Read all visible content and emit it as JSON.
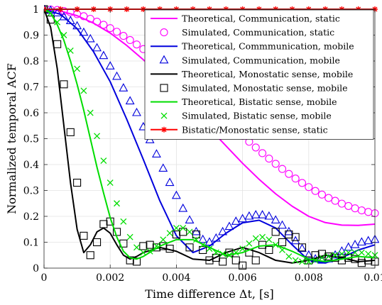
{
  "chart_data": {
    "type": "line",
    "xlabel": "Time difference Δt, [s]",
    "ylabel": "Normalized temporal ACF",
    "xlim": [
      0,
      0.01
    ],
    "ylim": [
      0,
      1
    ],
    "xticks": [
      0,
      0.002,
      0.004,
      0.006,
      0.008,
      0.01
    ],
    "xtick_labels": [
      "0",
      "0.002",
      "0.004",
      "0.006",
      "0.008",
      "0.01"
    ],
    "yticks": [
      0,
      0.1,
      0.2,
      0.3,
      0.4,
      0.5,
      0.6,
      0.7,
      0.8,
      0.9,
      1
    ],
    "ytick_labels": [
      "0",
      "0.1",
      "0.2",
      "0.3",
      "0.4",
      "0.5",
      "0.6",
      "0.7",
      "0.8",
      "0.9",
      "1"
    ],
    "grid": true,
    "legend_position": "top-right",
    "series": [
      {
        "name": "Theoretical, Communication, static",
        "kind": "line",
        "color": "#ff00ff",
        "x": [
          0,
          0.0005,
          0.001,
          0.0015,
          0.002,
          0.0025,
          0.003,
          0.0035,
          0.004,
          0.0045,
          0.005,
          0.0055,
          0.006,
          0.0065,
          0.007,
          0.0075,
          0.008,
          0.0085,
          0.009,
          0.0095,
          0.01
        ],
        "y": [
          1,
          0.993,
          0.975,
          0.946,
          0.908,
          0.86,
          0.805,
          0.744,
          0.678,
          0.61,
          0.54,
          0.472,
          0.405,
          0.343,
          0.287,
          0.239,
          0.2,
          0.176,
          0.166,
          0.165,
          0.17
        ]
      },
      {
        "name": "Simulated, Communication, static",
        "kind": "marker",
        "marker": "circle",
        "color": "#ff00ff",
        "x": [
          0,
          0.0002,
          0.0004,
          0.0006,
          0.0008,
          0.001,
          0.0012,
          0.0014,
          0.0016,
          0.0018,
          0.002,
          0.0022,
          0.0024,
          0.0026,
          0.0028,
          0.003,
          0.0032,
          0.0034,
          0.0036,
          0.0038,
          0.004,
          0.0042,
          0.0044,
          0.0046,
          0.0048,
          0.005,
          0.0052,
          0.0054,
          0.0056,
          0.0058,
          0.006,
          0.0062,
          0.0064,
          0.0066,
          0.0068,
          0.007,
          0.0072,
          0.0074,
          0.0076,
          0.0078,
          0.008,
          0.0082,
          0.0084,
          0.0086,
          0.0088,
          0.009,
          0.0092,
          0.0094,
          0.0096,
          0.0098,
          0.01
        ],
        "y": [
          1,
          0.999,
          0.997,
          0.993,
          0.988,
          0.981,
          0.973,
          0.963,
          0.952,
          0.94,
          0.927,
          0.913,
          0.897,
          0.881,
          0.864,
          0.846,
          0.827,
          0.807,
          0.786,
          0.765,
          0.743,
          0.721,
          0.698,
          0.675,
          0.652,
          0.628,
          0.605,
          0.581,
          0.557,
          0.534,
          0.511,
          0.488,
          0.466,
          0.444,
          0.423,
          0.403,
          0.383,
          0.364,
          0.346,
          0.329,
          0.313,
          0.298,
          0.284,
          0.271,
          0.26,
          0.249,
          0.24,
          0.231,
          0.223,
          0.217,
          0.212
        ]
      },
      {
        "name": "Theoretical, Commmunication, mobile",
        "kind": "line",
        "color": "#0000dd",
        "x": [
          0,
          0.0005,
          0.001,
          0.0015,
          0.002,
          0.0025,
          0.003,
          0.0035,
          0.004,
          0.0045,
          0.005,
          0.0055,
          0.006,
          0.0065,
          0.007,
          0.0075,
          0.008,
          0.0085,
          0.009,
          0.0095,
          0.01
        ],
        "y": [
          1,
          0.98,
          0.925,
          0.835,
          0.72,
          0.575,
          0.42,
          0.26,
          0.125,
          0.06,
          0.085,
          0.135,
          0.175,
          0.185,
          0.155,
          0.09,
          0.03,
          0.02,
          0.04,
          0.07,
          0.09
        ]
      },
      {
        "name": "Simulated, Communication, mobile",
        "kind": "marker",
        "marker": "triangle",
        "color": "#0000dd",
        "x": [
          0,
          0.0002,
          0.0004,
          0.0006,
          0.0008,
          0.001,
          0.0012,
          0.0014,
          0.0016,
          0.0018,
          0.002,
          0.0022,
          0.0024,
          0.0026,
          0.0028,
          0.003,
          0.0032,
          0.0034,
          0.0036,
          0.0038,
          0.004,
          0.0042,
          0.0044,
          0.0046,
          0.0048,
          0.005,
          0.0052,
          0.0054,
          0.0056,
          0.0058,
          0.006,
          0.0062,
          0.0064,
          0.0066,
          0.0068,
          0.007,
          0.0072,
          0.0074,
          0.0076,
          0.0078,
          0.008,
          0.0082,
          0.0084,
          0.0086,
          0.0088,
          0.009,
          0.0092,
          0.0094,
          0.0096,
          0.0098,
          0.01
        ],
        "y": [
          1,
          0.995,
          0.985,
          0.97,
          0.955,
          0.935,
          0.91,
          0.885,
          0.85,
          0.82,
          0.78,
          0.74,
          0.695,
          0.645,
          0.6,
          0.545,
          0.495,
          0.44,
          0.385,
          0.33,
          0.28,
          0.23,
          0.185,
          0.14,
          0.11,
          0.1,
          0.115,
          0.14,
          0.16,
          0.18,
          0.19,
          0.2,
          0.205,
          0.205,
          0.2,
          0.185,
          0.165,
          0.14,
          0.105,
          0.075,
          0.05,
          0.035,
          0.03,
          0.035,
          0.05,
          0.065,
          0.08,
          0.09,
          0.1,
          0.105,
          0.11
        ]
      },
      {
        "name": "Theoretical, Monostatic sense, mobile",
        "kind": "line",
        "color": "#000000",
        "x": [
          0,
          0.0002,
          0.0004,
          0.0006,
          0.0008,
          0.001,
          0.0012,
          0.0014,
          0.0016,
          0.0018,
          0.002,
          0.0022,
          0.0024,
          0.0026,
          0.0028,
          0.003,
          0.0035,
          0.004,
          0.0045,
          0.005,
          0.0055,
          0.006,
          0.0065,
          0.007,
          0.0075,
          0.008,
          0.0085,
          0.009,
          0.0095,
          0.01
        ],
        "y": [
          1,
          0.93,
          0.77,
          0.55,
          0.33,
          0.15,
          0.06,
          0.09,
          0.14,
          0.155,
          0.135,
          0.09,
          0.05,
          0.035,
          0.045,
          0.06,
          0.08,
          0.065,
          0.035,
          0.03,
          0.06,
          0.08,
          0.06,
          0.03,
          0.02,
          0.03,
          0.05,
          0.04,
          0.025,
          0.03
        ]
      },
      {
        "name": "Simulated, Monostatic sense, mobile",
        "kind": "marker",
        "marker": "square",
        "color": "#000000",
        "x": [
          0,
          0.0002,
          0.0004,
          0.0006,
          0.0008,
          0.001,
          0.0012,
          0.0014,
          0.0016,
          0.0018,
          0.002,
          0.0022,
          0.0024,
          0.0026,
          0.0028,
          0.003,
          0.0032,
          0.0034,
          0.0036,
          0.0038,
          0.004,
          0.0042,
          0.0044,
          0.0046,
          0.0048,
          0.005,
          0.0052,
          0.0054,
          0.0056,
          0.0058,
          0.006,
          0.0062,
          0.0064,
          0.0066,
          0.0068,
          0.007,
          0.0072,
          0.0074,
          0.0076,
          0.0078,
          0.008,
          0.0082,
          0.0084,
          0.0086,
          0.0088,
          0.009,
          0.0092,
          0.0094,
          0.0096,
          0.0098,
          0.01
        ],
        "y": [
          1,
          0.96,
          0.865,
          0.71,
          0.525,
          0.33,
          0.125,
          0.05,
          0.1,
          0.17,
          0.18,
          0.14,
          0.095,
          0.03,
          0.025,
          0.085,
          0.09,
          0.08,
          0.085,
          0.075,
          0.13,
          0.14,
          0.08,
          0.13,
          0.07,
          0.03,
          0.04,
          0.025,
          0.06,
          0.03,
          0.01,
          0.06,
          0.03,
          0.09,
          0.07,
          0.14,
          0.1,
          0.13,
          0.12,
          0.08,
          0.03,
          0.05,
          0.055,
          0.045,
          0.04,
          0.03,
          0.04,
          0.035,
          0.02,
          0.03,
          0.025
        ]
      },
      {
        "name": "Theoretical, Bistatic sense, mobile",
        "kind": "line",
        "color": "#00dd00",
        "x": [
          0,
          0.0002,
          0.0004,
          0.0006,
          0.0008,
          0.001,
          0.0012,
          0.0014,
          0.0016,
          0.0018,
          0.002,
          0.0022,
          0.0024,
          0.0026,
          0.0028,
          0.003,
          0.0035,
          0.004,
          0.0045,
          0.005,
          0.0055,
          0.006,
          0.0065,
          0.007,
          0.0075,
          0.008,
          0.0085,
          0.009,
          0.0095,
          0.01
        ],
        "y": [
          1,
          0.985,
          0.94,
          0.88,
          0.8,
          0.71,
          0.61,
          0.5,
          0.39,
          0.29,
          0.195,
          0.12,
          0.065,
          0.04,
          0.035,
          0.045,
          0.085,
          0.11,
          0.11,
          0.08,
          0.05,
          0.06,
          0.085,
          0.09,
          0.065,
          0.035,
          0.025,
          0.035,
          0.045,
          0.04
        ]
      },
      {
        "name": "Simulated, Bistatic sense, mobile",
        "kind": "marker",
        "marker": "x",
        "color": "#00dd00",
        "x": [
          0,
          0.0002,
          0.0004,
          0.0006,
          0.0008,
          0.001,
          0.0012,
          0.0014,
          0.0016,
          0.0018,
          0.002,
          0.0022,
          0.0024,
          0.0026,
          0.0028,
          0.003,
          0.0032,
          0.0034,
          0.0036,
          0.0038,
          0.004,
          0.0042,
          0.0044,
          0.0046,
          0.0048,
          0.005,
          0.0052,
          0.0054,
          0.0056,
          0.0058,
          0.006,
          0.0062,
          0.0064,
          0.0066,
          0.0068,
          0.007,
          0.0072,
          0.0074,
          0.0076,
          0.0078,
          0.008,
          0.0082,
          0.0084,
          0.0086,
          0.0088,
          0.009,
          0.0092,
          0.0094,
          0.0096,
          0.0098,
          0.01
        ],
        "y": [
          1,
          0.985,
          0.95,
          0.9,
          0.84,
          0.77,
          0.685,
          0.6,
          0.51,
          0.415,
          0.33,
          0.25,
          0.18,
          0.12,
          0.08,
          0.06,
          0.065,
          0.085,
          0.11,
          0.135,
          0.155,
          0.155,
          0.14,
          0.11,
          0.09,
          0.075,
          0.06,
          0.055,
          0.05,
          0.06,
          0.075,
          0.095,
          0.115,
          0.12,
          0.11,
          0.09,
          0.07,
          0.045,
          0.03,
          0.025,
          0.025,
          0.03,
          0.04,
          0.045,
          0.05,
          0.055,
          0.06,
          0.06,
          0.06,
          0.055,
          0.05
        ]
      },
      {
        "name": "Bistatic/Monostatic sense, static",
        "kind": "line+marker",
        "marker": "asterisk",
        "color": "#ff0000",
        "x": [
          0,
          0.0005,
          0.001,
          0.0015,
          0.002,
          0.0025,
          0.003,
          0.0035,
          0.004,
          0.0045,
          0.005,
          0.0055,
          0.006,
          0.0065,
          0.007,
          0.0075,
          0.008,
          0.0085,
          0.009,
          0.0095,
          0.01
        ],
        "y": [
          1,
          1,
          1,
          1,
          1,
          1,
          1,
          1,
          1,
          1,
          1,
          1,
          1,
          1,
          1,
          1,
          1,
          1,
          1,
          1,
          1
        ]
      }
    ]
  }
}
